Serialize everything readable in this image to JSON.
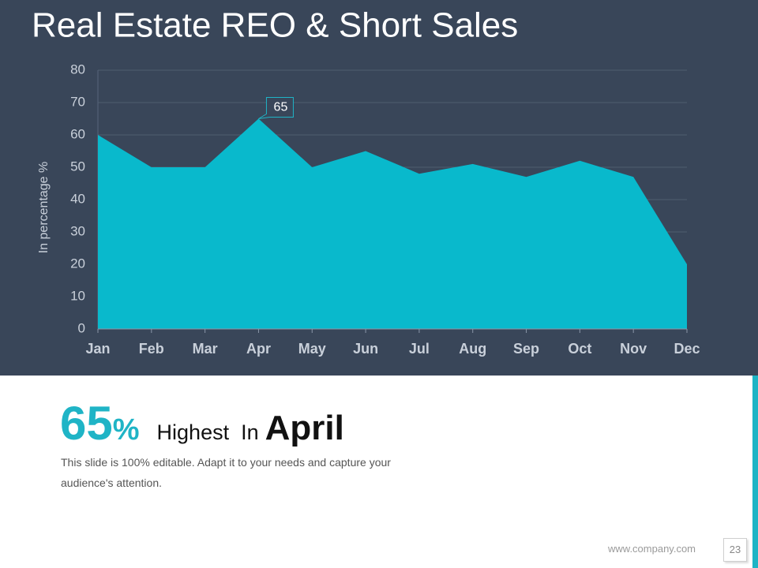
{
  "header": {
    "title": "Real Estate REO & Short Sales"
  },
  "chart_data": {
    "type": "area",
    "ylabel": "In percentage %",
    "categories": [
      "Jan",
      "Feb",
      "Mar",
      "Apr",
      "May",
      "Jun",
      "Jul",
      "Aug",
      "Sep",
      "Oct",
      "Nov",
      "Dec"
    ],
    "values": [
      60,
      50,
      50,
      65,
      50,
      55,
      48,
      51,
      47,
      52,
      47,
      20
    ],
    "color": "#09b9cc",
    "ylim": [
      0,
      80
    ],
    "yticks": [
      0,
      10,
      20,
      30,
      40,
      50,
      60,
      70,
      80
    ],
    "grid": true,
    "labeled_points": [
      3
    ]
  },
  "highlight": {
    "value": "65",
    "unit": "%",
    "label": "Highest  In",
    "month": "April",
    "text": "This slide is 100% editable. Adapt it to your needs and capture your audience's attention."
  },
  "footer": {
    "url": "www.company.com",
    "page": "23"
  }
}
